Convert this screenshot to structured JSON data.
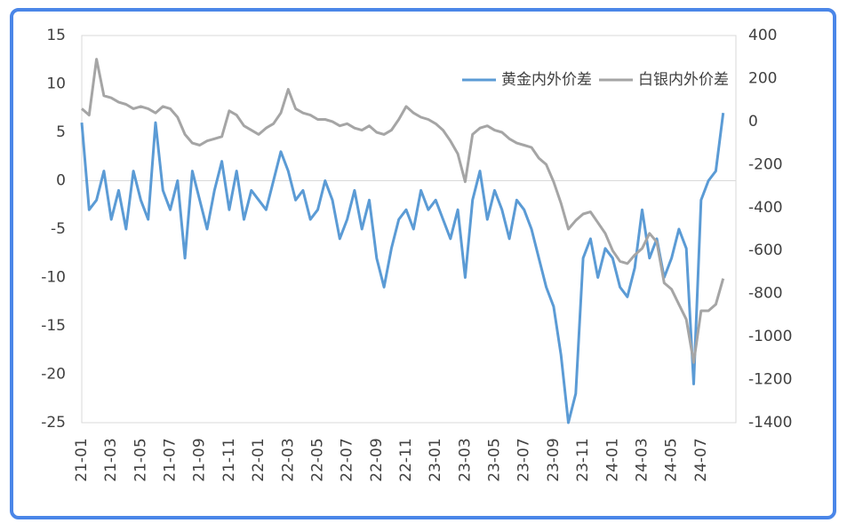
{
  "chart_data": {
    "type": "line",
    "categories": [
      "21-01",
      null,
      null,
      null,
      "21-03",
      null,
      null,
      null,
      "21-05",
      null,
      null,
      null,
      "21-07",
      null,
      null,
      null,
      "21-09",
      null,
      null,
      null,
      "21-11",
      null,
      null,
      null,
      "22-01",
      null,
      null,
      null,
      "22-03",
      null,
      null,
      null,
      "22-05",
      null,
      null,
      null,
      "22-07",
      null,
      null,
      null,
      "22-09",
      null,
      null,
      null,
      "22-11",
      null,
      null,
      null,
      "23-01",
      null,
      null,
      null,
      "23-03",
      null,
      null,
      null,
      "23-05",
      null,
      null,
      null,
      "23-07",
      null,
      null,
      null,
      "23-09",
      null,
      null,
      null,
      "23-11",
      null,
      null,
      null,
      "24-01",
      null,
      null,
      null,
      "24-03",
      null,
      null,
      null,
      "24-05",
      null,
      null,
      null,
      "24-07",
      null,
      null,
      null
    ],
    "series": [
      {
        "name": "黄金内外价差",
        "color": "#5b9bd5",
        "axis": "y",
        "values": [
          6,
          -3,
          -2,
          1,
          -4,
          -1,
          -5,
          1,
          -2,
          -4,
          6,
          -1,
          -3,
          0,
          -8,
          1,
          -2,
          -5,
          -1,
          2,
          -3,
          1,
          -4,
          -1,
          -2,
          -3,
          0,
          3,
          1,
          -2,
          -1,
          -4,
          -3,
          0,
          -2,
          -6,
          -4,
          -1,
          -5,
          -2,
          -8,
          -11,
          -7,
          -4,
          -3,
          -5,
          -1,
          -3,
          -2,
          -4,
          -6,
          -3,
          -10,
          -2,
          1,
          -4,
          -1,
          -3,
          -6,
          -2,
          -3,
          -5,
          -8,
          -11,
          -13,
          -18,
          -25,
          -22,
          -8,
          -6,
          -10,
          -7,
          -8,
          -11,
          -12,
          -9,
          -3,
          -8,
          -6,
          -10,
          -8,
          -5,
          -7,
          -21,
          -2,
          0,
          1,
          7
        ]
      },
      {
        "name": "白银内外价差",
        "color": "#a5a5a5",
        "axis": "y2",
        "values": [
          60,
          30,
          290,
          120,
          110,
          90,
          80,
          60,
          70,
          60,
          40,
          70,
          60,
          20,
          -60,
          -100,
          -110,
          -90,
          -80,
          -70,
          50,
          30,
          -20,
          -40,
          -60,
          -30,
          -10,
          40,
          150,
          60,
          40,
          30,
          10,
          10,
          0,
          -20,
          -10,
          -30,
          -40,
          -20,
          -50,
          -60,
          -40,
          10,
          70,
          40,
          20,
          10,
          -10,
          -40,
          -90,
          -150,
          -280,
          -60,
          -30,
          -20,
          -40,
          -50,
          -80,
          -100,
          -110,
          -120,
          -170,
          -200,
          -280,
          -380,
          -500,
          -460,
          -430,
          -420,
          -470,
          -520,
          -600,
          -650,
          -660,
          -620,
          -590,
          -520,
          -560,
          -750,
          -780,
          -850,
          -920,
          -1120,
          -880,
          -880,
          -850,
          -730
        ]
      }
    ],
    "ylim": [
      -25,
      15
    ],
    "yticks": [
      -25,
      -20,
      -15,
      -10,
      -5,
      0,
      5,
      10,
      15
    ],
    "y2lim": [
      -1400,
      400
    ],
    "y2ticks": [
      -1400,
      -1200,
      -1000,
      -800,
      -600,
      -400,
      -200,
      0,
      200,
      400
    ],
    "legend": "top-right"
  }
}
